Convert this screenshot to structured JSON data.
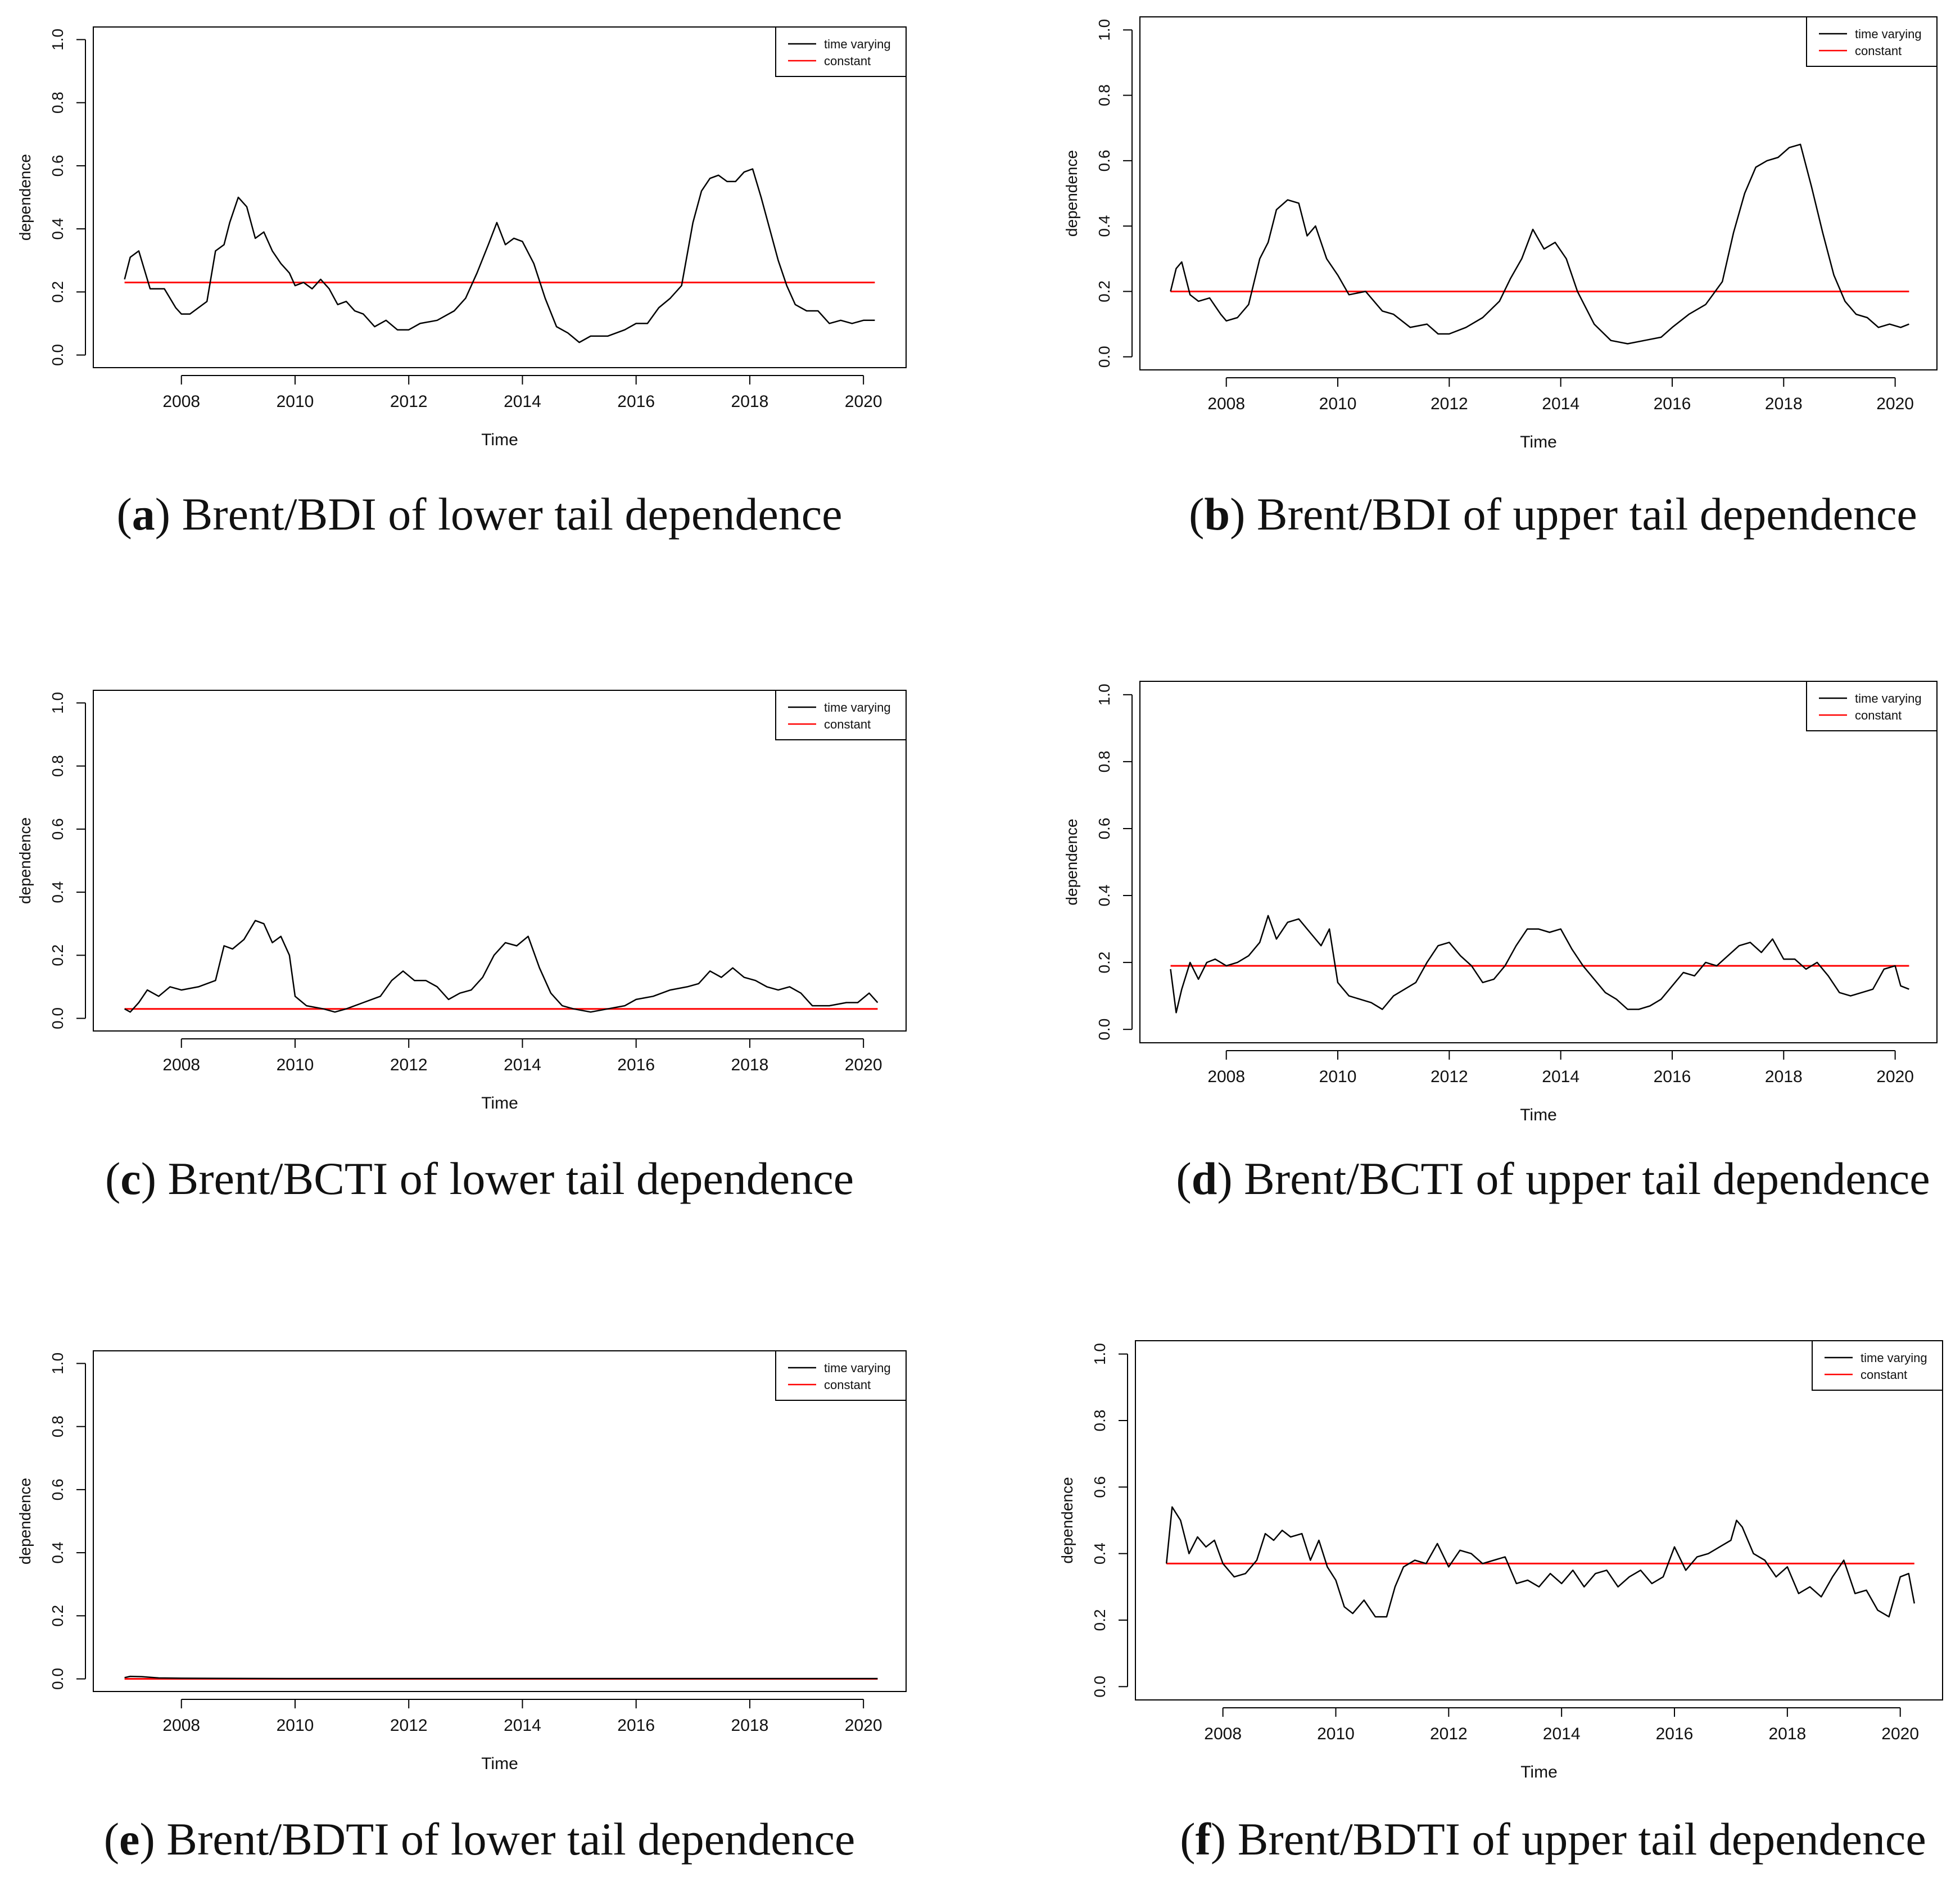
{
  "colors": {
    "time_varying": "#000000",
    "constant": "#ff0000",
    "axis": "#000000"
  },
  "chart_data": [
    {
      "id": "a",
      "type": "line",
      "caption_letter": "a",
      "caption_text": "Brent/BDI of lower tail dependence",
      "xlabel": "Time",
      "ylabel": "dependence",
      "xlim": [
        2006.45,
        2020.75
      ],
      "ylim": [
        -0.04,
        1.04
      ],
      "xticks": [
        "2008",
        "2010",
        "2012",
        "2014",
        "2016",
        "2018",
        "2020"
      ],
      "yticks": [
        "0.0",
        "0.2",
        "0.4",
        "0.6",
        "0.8",
        "1.0"
      ],
      "legend": [
        "time varying",
        "constant"
      ],
      "legend_position": "top-right",
      "constant": 0.23,
      "series": [
        {
          "name": "time varying",
          "x": [
            2007.0,
            2007.1,
            2007.25,
            2007.45,
            2007.7,
            2007.9,
            2008.0,
            2008.15,
            2008.3,
            2008.45,
            2008.6,
            2008.75,
            2008.85,
            2009.0,
            2009.15,
            2009.3,
            2009.45,
            2009.6,
            2009.75,
            2009.9,
            2010.0,
            2010.15,
            2010.3,
            2010.45,
            2010.6,
            2010.75,
            2010.9,
            2011.05,
            2011.2,
            2011.4,
            2011.6,
            2011.8,
            2012.0,
            2012.2,
            2012.5,
            2012.8,
            2013.0,
            2013.2,
            2013.4,
            2013.55,
            2013.7,
            2013.85,
            2014.0,
            2014.2,
            2014.4,
            2014.6,
            2014.8,
            2015.0,
            2015.2,
            2015.5,
            2015.8,
            2016.0,
            2016.2,
            2016.4,
            2016.6,
            2016.8,
            2017.0,
            2017.15,
            2017.3,
            2017.45,
            2017.6,
            2017.75,
            2017.9,
            2018.05,
            2018.2,
            2018.35,
            2018.5,
            2018.65,
            2018.8,
            2019.0,
            2019.2,
            2019.4,
            2019.6,
            2019.8,
            2020.0,
            2020.2
          ],
          "values": [
            0.24,
            0.31,
            0.33,
            0.21,
            0.21,
            0.15,
            0.13,
            0.13,
            0.15,
            0.17,
            0.33,
            0.35,
            0.42,
            0.5,
            0.47,
            0.37,
            0.39,
            0.33,
            0.29,
            0.26,
            0.22,
            0.23,
            0.21,
            0.24,
            0.21,
            0.16,
            0.17,
            0.14,
            0.13,
            0.09,
            0.11,
            0.08,
            0.08,
            0.1,
            0.11,
            0.14,
            0.18,
            0.26,
            0.35,
            0.42,
            0.35,
            0.37,
            0.36,
            0.29,
            0.18,
            0.09,
            0.07,
            0.04,
            0.06,
            0.06,
            0.08,
            0.1,
            0.1,
            0.15,
            0.18,
            0.22,
            0.42,
            0.52,
            0.56,
            0.57,
            0.55,
            0.55,
            0.58,
            0.59,
            0.5,
            0.4,
            0.3,
            0.22,
            0.16,
            0.14,
            0.14,
            0.1,
            0.11,
            0.1,
            0.11,
            0.11
          ]
        }
      ]
    },
    {
      "id": "b",
      "type": "line",
      "caption_letter": "b",
      "caption_text": "Brent/BDI of upper tail dependence",
      "xlabel": "Time",
      "ylabel": "dependence",
      "xlim": [
        2006.45,
        2020.75
      ],
      "ylim": [
        -0.04,
        1.04
      ],
      "xticks": [
        "2008",
        "2010",
        "2012",
        "2014",
        "2016",
        "2018",
        "2020"
      ],
      "yticks": [
        "0.0",
        "0.2",
        "0.4",
        "0.6",
        "0.8",
        "1.0"
      ],
      "legend": [
        "time varying",
        "constant"
      ],
      "legend_position": "top-right",
      "constant": 0.2,
      "series": [
        {
          "name": "time varying",
          "x": [
            2007.0,
            2007.1,
            2007.2,
            2007.35,
            2007.5,
            2007.7,
            2007.9,
            2008.0,
            2008.2,
            2008.4,
            2008.6,
            2008.75,
            2008.9,
            2009.1,
            2009.3,
            2009.45,
            2009.6,
            2009.8,
            2010.0,
            2010.2,
            2010.5,
            2010.8,
            2011.0,
            2011.3,
            2011.6,
            2011.8,
            2012.0,
            2012.3,
            2012.6,
            2012.9,
            2013.1,
            2013.3,
            2013.5,
            2013.7,
            2013.9,
            2014.1,
            2014.3,
            2014.6,
            2014.9,
            2015.2,
            2015.5,
            2015.8,
            2016.0,
            2016.3,
            2016.6,
            2016.9,
            2017.1,
            2017.3,
            2017.5,
            2017.7,
            2017.9,
            2018.1,
            2018.3,
            2018.5,
            2018.7,
            2018.9,
            2019.1,
            2019.3,
            2019.5,
            2019.7,
            2019.9,
            2020.1,
            2020.25
          ],
          "values": [
            0.2,
            0.27,
            0.29,
            0.19,
            0.17,
            0.18,
            0.13,
            0.11,
            0.12,
            0.16,
            0.3,
            0.35,
            0.45,
            0.48,
            0.47,
            0.37,
            0.4,
            0.3,
            0.25,
            0.19,
            0.2,
            0.14,
            0.13,
            0.09,
            0.1,
            0.07,
            0.07,
            0.09,
            0.12,
            0.17,
            0.24,
            0.3,
            0.39,
            0.33,
            0.35,
            0.3,
            0.2,
            0.1,
            0.05,
            0.04,
            0.05,
            0.06,
            0.09,
            0.13,
            0.16,
            0.23,
            0.38,
            0.5,
            0.58,
            0.6,
            0.61,
            0.64,
            0.65,
            0.52,
            0.38,
            0.25,
            0.17,
            0.13,
            0.12,
            0.09,
            0.1,
            0.09,
            0.1
          ]
        }
      ]
    },
    {
      "id": "c",
      "type": "line",
      "caption_letter": "c",
      "caption_text": "Brent/BCTI of lower tail dependence",
      "xlabel": "Time",
      "ylabel": "dependence",
      "xlim": [
        2006.45,
        2020.75
      ],
      "ylim": [
        -0.04,
        1.04
      ],
      "xticks": [
        "2008",
        "2010",
        "2012",
        "2014",
        "2016",
        "2018",
        "2020"
      ],
      "yticks": [
        "0.0",
        "0.2",
        "0.4",
        "0.6",
        "0.8",
        "1.0"
      ],
      "legend": [
        "time varying",
        "constant"
      ],
      "legend_position": "top-right",
      "constant": 0.03,
      "series": [
        {
          "name": "time varying",
          "x": [
            2007.0,
            2007.1,
            2007.25,
            2007.4,
            2007.6,
            2007.8,
            2008.0,
            2008.3,
            2008.6,
            2008.75,
            2008.9,
            2009.1,
            2009.3,
            2009.45,
            2009.6,
            2009.75,
            2009.9,
            2010.0,
            2010.2,
            2010.5,
            2010.7,
            2010.9,
            2011.2,
            2011.5,
            2011.7,
            2011.9,
            2012.1,
            2012.3,
            2012.5,
            2012.7,
            2012.9,
            2013.1,
            2013.3,
            2013.5,
            2013.7,
            2013.9,
            2014.1,
            2014.3,
            2014.5,
            2014.7,
            2014.9,
            2015.2,
            2015.5,
            2015.8,
            2016.0,
            2016.3,
            2016.6,
            2016.9,
            2017.1,
            2017.3,
            2017.5,
            2017.7,
            2017.9,
            2018.1,
            2018.3,
            2018.5,
            2018.7,
            2018.9,
            2019.1,
            2019.4,
            2019.7,
            2019.9,
            2020.1,
            2020.25
          ],
          "values": [
            0.03,
            0.02,
            0.05,
            0.09,
            0.07,
            0.1,
            0.09,
            0.1,
            0.12,
            0.23,
            0.22,
            0.25,
            0.31,
            0.3,
            0.24,
            0.26,
            0.2,
            0.07,
            0.04,
            0.03,
            0.02,
            0.03,
            0.05,
            0.07,
            0.12,
            0.15,
            0.12,
            0.12,
            0.1,
            0.06,
            0.08,
            0.09,
            0.13,
            0.2,
            0.24,
            0.23,
            0.26,
            0.16,
            0.08,
            0.04,
            0.03,
            0.02,
            0.03,
            0.04,
            0.06,
            0.07,
            0.09,
            0.1,
            0.11,
            0.15,
            0.13,
            0.16,
            0.13,
            0.12,
            0.1,
            0.09,
            0.1,
            0.08,
            0.04,
            0.04,
            0.05,
            0.05,
            0.08,
            0.05
          ]
        }
      ]
    },
    {
      "id": "d",
      "type": "line",
      "caption_letter": "d",
      "caption_text": "Brent/BCTI of upper tail dependence",
      "xlabel": "Time",
      "ylabel": "dependence",
      "xlim": [
        2006.45,
        2020.75
      ],
      "ylim": [
        -0.04,
        1.04
      ],
      "xticks": [
        "2008",
        "2010",
        "2012",
        "2014",
        "2016",
        "2018",
        "2020"
      ],
      "yticks": [
        "0.0",
        "0.2",
        "0.4",
        "0.6",
        "0.8",
        "1.0"
      ],
      "legend": [
        "time varying",
        "constant"
      ],
      "legend_position": "top-right",
      "constant": 0.19,
      "series": [
        {
          "name": "time varying",
          "x": [
            2007.0,
            2007.1,
            2007.2,
            2007.35,
            2007.5,
            2007.65,
            2007.8,
            2008.0,
            2008.2,
            2008.4,
            2008.6,
            2008.75,
            2008.9,
            2009.1,
            2009.3,
            2009.5,
            2009.7,
            2009.85,
            2010.0,
            2010.2,
            2010.4,
            2010.6,
            2010.8,
            2011.0,
            2011.2,
            2011.4,
            2011.6,
            2011.8,
            2012.0,
            2012.2,
            2012.4,
            2012.6,
            2012.8,
            2013.0,
            2013.2,
            2013.4,
            2013.6,
            2013.8,
            2014.0,
            2014.2,
            2014.4,
            2014.6,
            2014.8,
            2015.0,
            2015.2,
            2015.4,
            2015.6,
            2015.8,
            2016.0,
            2016.2,
            2016.4,
            2016.6,
            2016.8,
            2017.0,
            2017.2,
            2017.4,
            2017.6,
            2017.8,
            2018.0,
            2018.2,
            2018.4,
            2018.6,
            2018.8,
            2019.0,
            2019.2,
            2019.4,
            2019.6,
            2019.8,
            2020.0,
            2020.1,
            2020.25
          ],
          "values": [
            0.18,
            0.05,
            0.12,
            0.2,
            0.15,
            0.2,
            0.21,
            0.19,
            0.2,
            0.22,
            0.26,
            0.34,
            0.27,
            0.32,
            0.33,
            0.29,
            0.25,
            0.3,
            0.14,
            0.1,
            0.09,
            0.08,
            0.06,
            0.1,
            0.12,
            0.14,
            0.2,
            0.25,
            0.26,
            0.22,
            0.19,
            0.14,
            0.15,
            0.19,
            0.25,
            0.3,
            0.3,
            0.29,
            0.3,
            0.24,
            0.19,
            0.15,
            0.11,
            0.09,
            0.06,
            0.06,
            0.07,
            0.09,
            0.13,
            0.17,
            0.16,
            0.2,
            0.19,
            0.22,
            0.25,
            0.26,
            0.23,
            0.27,
            0.21,
            0.21,
            0.18,
            0.2,
            0.16,
            0.11,
            0.1,
            0.11,
            0.12,
            0.18,
            0.19,
            0.13,
            0.12
          ]
        }
      ]
    },
    {
      "id": "e",
      "type": "line",
      "caption_letter": "e",
      "caption_text": "Brent/BDTI of lower tail dependence",
      "xlabel": "Time",
      "ylabel": "dependence",
      "xlim": [
        2006.45,
        2020.75
      ],
      "ylim": [
        -0.04,
        1.04
      ],
      "xticks": [
        "2008",
        "2010",
        "2012",
        "2014",
        "2016",
        "2018",
        "2020"
      ],
      "yticks": [
        "0.0",
        "0.2",
        "0.4",
        "0.6",
        "0.8",
        "1.0"
      ],
      "legend": [
        "time varying",
        "constant"
      ],
      "legend_position": "top-right",
      "constant": 0.0,
      "series": [
        {
          "name": "time varying",
          "x": [
            2007.0,
            2007.1,
            2007.3,
            2007.6,
            2008.0,
            2010.0,
            2012.0,
            2014.0,
            2016.0,
            2018.0,
            2020.25
          ],
          "values": [
            0.004,
            0.008,
            0.007,
            0.003,
            0.002,
            0.001,
            0.001,
            0.001,
            0.001,
            0.001,
            0.001
          ]
        }
      ]
    },
    {
      "id": "f",
      "type": "line",
      "caption_letter": "f",
      "caption_text": "Brent/BDTI of upper tail dependence",
      "xlabel": "Time",
      "ylabel": "dependence",
      "xlim": [
        2006.45,
        2020.75
      ],
      "ylim": [
        -0.04,
        1.04
      ],
      "xticks": [
        "2008",
        "2010",
        "2012",
        "2014",
        "2016",
        "2018",
        "2020"
      ],
      "yticks": [
        "0.0",
        "0.2",
        "0.4",
        "0.6",
        "0.8",
        "1.0"
      ],
      "legend": [
        "time varying",
        "constant"
      ],
      "legend_position": "top-right",
      "constant": 0.37,
      "series": [
        {
          "name": "time varying",
          "x": [
            2007.0,
            2007.1,
            2007.25,
            2007.4,
            2007.55,
            2007.7,
            2007.85,
            2008.0,
            2008.2,
            2008.4,
            2008.6,
            2008.75,
            2008.9,
            2009.05,
            2009.2,
            2009.4,
            2009.55,
            2009.7,
            2009.85,
            2010.0,
            2010.15,
            2010.3,
            2010.5,
            2010.7,
            2010.9,
            2011.05,
            2011.2,
            2011.4,
            2011.6,
            2011.8,
            2012.0,
            2012.2,
            2012.4,
            2012.6,
            2012.8,
            2013.0,
            2013.2,
            2013.4,
            2013.6,
            2013.8,
            2014.0,
            2014.2,
            2014.4,
            2014.6,
            2014.8,
            2015.0,
            2015.2,
            2015.4,
            2015.6,
            2015.8,
            2016.0,
            2016.2,
            2016.4,
            2016.6,
            2016.8,
            2017.0,
            2017.1,
            2017.2,
            2017.4,
            2017.6,
            2017.8,
            2018.0,
            2018.2,
            2018.4,
            2018.6,
            2018.8,
            2019.0,
            2019.2,
            2019.4,
            2019.6,
            2019.8,
            2020.0,
            2020.15,
            2020.25
          ],
          "values": [
            0.37,
            0.54,
            0.5,
            0.4,
            0.45,
            0.42,
            0.44,
            0.37,
            0.33,
            0.34,
            0.38,
            0.46,
            0.44,
            0.47,
            0.45,
            0.46,
            0.38,
            0.44,
            0.36,
            0.32,
            0.24,
            0.22,
            0.26,
            0.21,
            0.21,
            0.3,
            0.36,
            0.38,
            0.37,
            0.43,
            0.36,
            0.41,
            0.4,
            0.37,
            0.38,
            0.39,
            0.31,
            0.32,
            0.3,
            0.34,
            0.31,
            0.35,
            0.3,
            0.34,
            0.35,
            0.3,
            0.33,
            0.35,
            0.31,
            0.33,
            0.42,
            0.35,
            0.39,
            0.4,
            0.42,
            0.44,
            0.5,
            0.48,
            0.4,
            0.38,
            0.33,
            0.36,
            0.28,
            0.3,
            0.27,
            0.33,
            0.38,
            0.28,
            0.29,
            0.23,
            0.21,
            0.33,
            0.34,
            0.25
          ]
        }
      ]
    }
  ]
}
